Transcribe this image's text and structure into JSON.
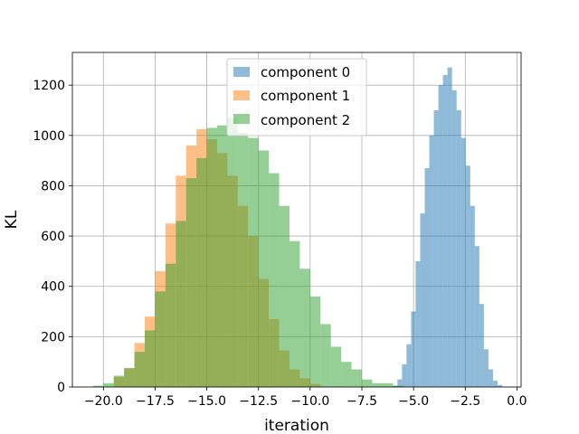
{
  "chart_data": {
    "type": "histogram",
    "title": "",
    "xlabel": "iteration",
    "ylabel": "KL",
    "xlim": [
      -21.5,
      0.2
    ],
    "ylim": [
      0,
      1330
    ],
    "grid": true,
    "legend_position": "upper-center",
    "xticks": [
      -20.0,
      -17.5,
      -15.0,
      -12.5,
      -10.0,
      -7.5,
      -5.0,
      -2.5,
      0.0
    ],
    "xtick_labels": [
      "−20.0",
      "−17.5",
      "−15.0",
      "−12.5",
      "−10.0",
      "−7.5",
      "−5.0",
      "−2.5",
      "0.0"
    ],
    "yticks": [
      0,
      200,
      400,
      600,
      800,
      1000,
      1200
    ],
    "ytick_labels": [
      "0",
      "200",
      "400",
      "600",
      "800",
      "1000",
      "1200"
    ],
    "series": [
      {
        "name": "component 0",
        "color": "#1f77b4",
        "opacity": 0.5,
        "bin_start": -6.0,
        "bin_width": 0.22,
        "counts": [
          5,
          30,
          90,
          170,
          300,
          500,
          690,
          870,
          1000,
          1100,
          1200,
          1240,
          1270,
          1180,
          1100,
          990,
          880,
          720,
          560,
          330,
          150,
          70,
          25,
          8
        ]
      },
      {
        "name": "component 1",
        "color": "#ff7f0e",
        "opacity": 0.5,
        "bin_start": -19.5,
        "bin_width": 0.5,
        "counts": [
          40,
          75,
          175,
          280,
          460,
          650,
          840,
          960,
          1025,
          985,
          930,
          840,
          720,
          600,
          430,
          270,
          145,
          70,
          35,
          12
        ]
      },
      {
        "name": "component 2",
        "color": "#2ca02c",
        "opacity": 0.5,
        "bin_start": -20.5,
        "bin_width": 0.5,
        "counts": [
          5,
          15,
          45,
          75,
          140,
          225,
          380,
          490,
          660,
          830,
          910,
          1030,
          1040,
          1070,
          1010,
          990,
          940,
          850,
          720,
          580,
          470,
          360,
          250,
          160,
          100,
          70,
          30,
          15,
          15,
          5
        ]
      }
    ]
  }
}
